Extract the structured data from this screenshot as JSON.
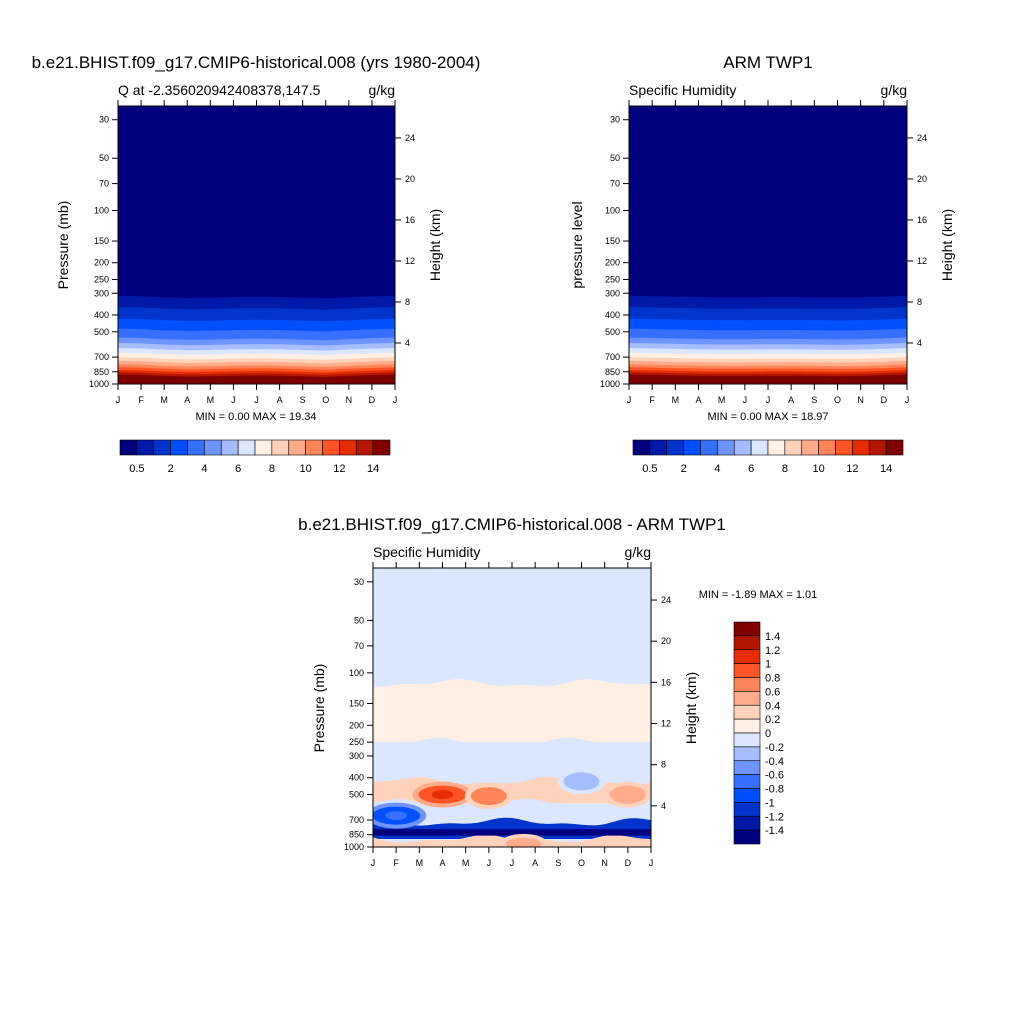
{
  "colors": {
    "abs_scale": [
      "#00007f",
      "#0019a6",
      "#0034cc",
      "#0050ff",
      "#3770ff",
      "#6e95ff",
      "#a6bdff",
      "#dbe6ff",
      "#fff0e3",
      "#ffd2b9",
      "#ffac8c",
      "#ff8559",
      "#ff5526",
      "#e62c00",
      "#b31700",
      "#800000"
    ],
    "diff_scale": [
      "#00007f",
      "#0019a6",
      "#0034cc",
      "#0050ff",
      "#3770ff",
      "#6e95ff",
      "#a6bdff",
      "#dbe6ff",
      "#fff0e3",
      "#ffd2b9",
      "#ffac8c",
      "#ff8559",
      "#ff5526",
      "#e62c00",
      "#b31700",
      "#800000"
    ]
  },
  "months": [
    "J",
    "F",
    "M",
    "A",
    "M",
    "J",
    "J",
    "A",
    "S",
    "O",
    "N",
    "D",
    "J"
  ],
  "pressure_ticks": [
    "30",
    "50",
    "70",
    "100",
    "150",
    "200",
    "250",
    "300",
    "400",
    "500",
    "700",
    "850",
    "1000"
  ],
  "height_ticks": [
    "24",
    "20",
    "16",
    "12",
    "8",
    "4"
  ],
  "panel_model": {
    "title": "b.e21.BHIST.f09_g17.CMIP6-historical.008 (yrs 1980-2004)",
    "left_sub": "Q at -2.356020942408378,147.5",
    "right_sub": "g/kg",
    "ylabel": "Pressure (mb)",
    "ylabel_right": "Height (km)",
    "stats": "MIN =   0.00 MAX =  19.34"
  },
  "panel_obs": {
    "title": "ARM TWP1",
    "left_sub": "Specific Humidity",
    "right_sub": "g/kg",
    "ylabel": "pressure level",
    "ylabel_right": "Height (km)",
    "stats": "MIN =   0.00 MAX =  18.97"
  },
  "panel_diff": {
    "title": "b.e21.BHIST.f09_g17.CMIP6-historical.008 - ARM TWP1",
    "left_sub": "Specific Humidity",
    "right_sub": "g/kg",
    "ylabel": "Pressure (mb)",
    "ylabel_right": "Height (km)",
    "stats": "MIN =  -1.89 MAX =    1.01"
  },
  "colorbar_abs": {
    "labels": [
      "0.5",
      "2",
      "4",
      "6",
      "8",
      "10",
      "12",
      "14"
    ]
  },
  "colorbar_diff": {
    "labels": [
      "1.4",
      "1.2",
      "1",
      "0.8",
      "0.6",
      "0.4",
      "0.2",
      "0",
      "-0.2",
      "-0.4",
      "-0.6",
      "-0.8",
      "-1",
      "-1.2",
      "-1.4"
    ]
  },
  "chart_data": [
    {
      "type": "heatmap",
      "title": "b.e21.BHIST.f09_g17.CMIP6-historical.008 (yrs 1980-2004)",
      "subtitle": "Q at -2.356020942408378,147.5",
      "units": "g/kg",
      "xlabel": "",
      "ylabel": "Pressure (mb)",
      "ylabel_right": "Height (km)",
      "x": [
        "J",
        "F",
        "M",
        "A",
        "M",
        "J",
        "J",
        "A",
        "S",
        "O",
        "N",
        "D",
        "J"
      ],
      "y_pressure_levels": [
        30,
        50,
        70,
        100,
        150,
        200,
        250,
        300,
        400,
        500,
        700,
        850,
        1000
      ],
      "y_scale": "log",
      "ylim": [
        1000,
        25
      ],
      "profile": [
        {
          "p": 25,
          "q": 0.0
        },
        {
          "p": 200,
          "q": 0.0
        },
        {
          "p": 280,
          "q": 0.1
        },
        {
          "p": 310,
          "q": 0.5
        },
        {
          "p": 360,
          "q": 1.0
        },
        {
          "p": 420,
          "q": 2.0
        },
        {
          "p": 480,
          "q": 3.0
        },
        {
          "p": 540,
          "q": 4.0
        },
        {
          "p": 620,
          "q": 6.0
        },
        {
          "p": 700,
          "q": 8.0
        },
        {
          "p": 770,
          "q": 10.0
        },
        {
          "p": 830,
          "q": 12.0
        },
        {
          "p": 880,
          "q": 14.0
        },
        {
          "p": 940,
          "q": 16.0
        },
        {
          "p": 1000,
          "q": 18.0
        }
      ],
      "seasonal_shift": [
        0.0,
        0.1,
        0.35,
        0.5,
        0.45,
        0.3,
        0.25,
        0.3,
        0.45,
        0.6,
        0.35,
        0.15,
        0.0
      ],
      "min": 0.0,
      "max": 19.34,
      "colorbar_labels": [
        "0.5",
        "2",
        "4",
        "6",
        "8",
        "10",
        "12",
        "14"
      ]
    },
    {
      "type": "heatmap",
      "title": "ARM TWP1",
      "subtitle": "Specific Humidity",
      "units": "g/kg",
      "xlabel": "",
      "ylabel": "pressure level",
      "ylabel_right": "Height (km)",
      "x": [
        "J",
        "F",
        "M",
        "A",
        "M",
        "J",
        "J",
        "A",
        "S",
        "O",
        "N",
        "D",
        "J"
      ],
      "y_pressure_levels": [
        30,
        50,
        70,
        100,
        150,
        200,
        250,
        300,
        400,
        500,
        700,
        850,
        1000
      ],
      "y_scale": "log",
      "ylim": [
        1000,
        25
      ],
      "profile": [
        {
          "p": 25,
          "q": 0.0
        },
        {
          "p": 200,
          "q": 0.0
        },
        {
          "p": 280,
          "q": 0.1
        },
        {
          "p": 310,
          "q": 0.5
        },
        {
          "p": 360,
          "q": 1.0
        },
        {
          "p": 420,
          "q": 2.0
        },
        {
          "p": 480,
          "q": 3.0
        },
        {
          "p": 540,
          "q": 4.0
        },
        {
          "p": 620,
          "q": 6.0
        },
        {
          "p": 700,
          "q": 8.0
        },
        {
          "p": 770,
          "q": 10.0
        },
        {
          "p": 830,
          "q": 12.0
        },
        {
          "p": 880,
          "q": 14.0
        },
        {
          "p": 940,
          "q": 16.0
        },
        {
          "p": 1000,
          "q": 18.0
        }
      ],
      "seasonal_shift": [
        0.0,
        0.1,
        0.2,
        0.3,
        0.35,
        0.35,
        0.3,
        0.3,
        0.35,
        0.4,
        0.35,
        0.2,
        0.0
      ],
      "min": 0.0,
      "max": 18.97,
      "colorbar_labels": [
        "0.5",
        "2",
        "4",
        "6",
        "8",
        "10",
        "12",
        "14"
      ]
    },
    {
      "type": "heatmap",
      "title": "b.e21.BHIST.f09_g17.CMIP6-historical.008 - ARM TWP1",
      "subtitle": "Specific Humidity",
      "units": "g/kg",
      "xlabel": "",
      "ylabel": "Pressure (mb)",
      "ylabel_right": "Height (km)",
      "x": [
        "J",
        "F",
        "M",
        "A",
        "M",
        "J",
        "J",
        "A",
        "S",
        "O",
        "N",
        "D",
        "J"
      ],
      "y_pressure_levels": [
        30,
        50,
        70,
        100,
        150,
        200,
        250,
        300,
        400,
        500,
        700,
        850,
        1000
      ],
      "y_scale": "log",
      "ylim": [
        1000,
        25
      ],
      "bands": [
        {
          "p_top": 25,
          "p_bottom": 115,
          "diff": -0.1
        },
        {
          "p_top": 115,
          "p_bottom": 250,
          "diff": 0.1
        },
        {
          "p_top": 250,
          "p_bottom": 420,
          "diff": -0.1
        },
        {
          "p_top": 420,
          "p_bottom": 560,
          "diff": 0.2
        },
        {
          "p_top": 560,
          "p_bottom": 720,
          "diff": -0.2
        },
        {
          "p_top": 720,
          "p_bottom": 900,
          "diff": -1.2
        },
        {
          "p_top": 900,
          "p_bottom": 1000,
          "diff": 0.2
        }
      ],
      "features": [
        {
          "month": "A",
          "p": 500,
          "diff": 0.8
        },
        {
          "month": "J",
          "p": 510,
          "diff": 0.6
        },
        {
          "month": "D",
          "p": 500,
          "diff": 0.5
        },
        {
          "month": "O",
          "p": 420,
          "diff": -0.4
        },
        {
          "month": "F",
          "p": 660,
          "diff": -1.0
        },
        {
          "month": "J",
          "p": 960,
          "diff": 0.4
        }
      ],
      "min": -1.89,
      "max": 1.01,
      "colorbar_labels": [
        "1.4",
        "1.2",
        "1",
        "0.8",
        "0.6",
        "0.4",
        "0.2",
        "0",
        "-0.2",
        "-0.4",
        "-0.6",
        "-0.8",
        "-1",
        "-1.2",
        "-1.4"
      ]
    }
  ]
}
